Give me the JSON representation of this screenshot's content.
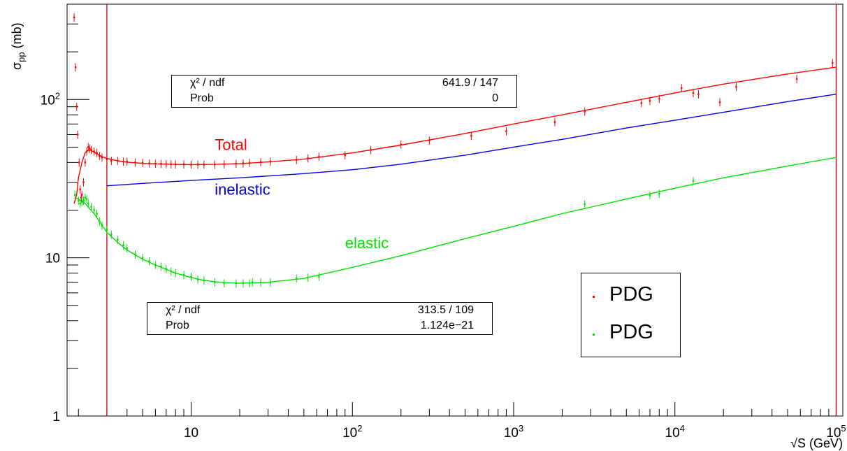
{
  "chart_data": {
    "type": "scatter",
    "title": "",
    "xlabel": "√S (GeV)",
    "ylabel": "σpp (mb)",
    "ylabel_main": "σ",
    "ylabel_sub": "pp",
    "xscale": "log",
    "yscale": "log",
    "xlim": [
      1.7,
      110000
    ],
    "ylim": [
      1,
      400
    ],
    "x_tick_labels": [
      {
        "value": 10,
        "base": "10",
        "exp": ""
      },
      {
        "value": 100,
        "base": "10",
        "exp": "2"
      },
      {
        "value": 1000,
        "base": "10",
        "exp": "3"
      },
      {
        "value": 10000,
        "base": "10",
        "exp": "4"
      },
      {
        "value": 100000,
        "base": "10",
        "exp": "5"
      }
    ],
    "y_tick_labels": [
      {
        "value": 1,
        "base": "1",
        "exp": ""
      },
      {
        "value": 10,
        "base": "10",
        "exp": ""
      },
      {
        "value": 100,
        "base": "10",
        "exp": "2"
      }
    ],
    "vertical_lines": [
      3.0,
      100000
    ],
    "vertical_line_color": "#d00000",
    "grid": false,
    "legend_position": "bottom-right",
    "series": [
      {
        "name": "PDG",
        "kind": "data",
        "color": "#ff0000",
        "x": [
          1.88,
          1.92,
          1.95,
          1.98,
          2.02,
          2.05,
          2.08,
          2.1,
          2.15,
          2.2,
          2.25,
          2.3,
          2.35,
          2.4,
          2.5,
          2.6,
          2.7,
          2.8,
          3.0,
          3.2,
          3.5,
          3.8,
          4.0,
          4.5,
          5.0,
          5.5,
          6.0,
          6.5,
          7.0,
          7.5,
          8.0,
          9.0,
          10.0,
          11.0,
          12.0,
          14.0,
          16.0,
          19.0,
          21.0,
          23.0,
          27.0,
          31.0,
          45.0,
          53.0,
          62.0,
          90.0,
          130.0,
          200.0,
          300.0,
          546.0,
          900.0,
          1800.0,
          2760.0,
          6200.0,
          7000.0,
          8000.0,
          11000.0,
          13000.0,
          14000.0,
          19000.0,
          24000.0,
          57000.0,
          95000.0
        ],
        "y": [
          330,
          160,
          90,
          60,
          40,
          27,
          24,
          25,
          30,
          40,
          47,
          50,
          49,
          48,
          47,
          46,
          44,
          43,
          42,
          41,
          41,
          40.5,
          40.5,
          40,
          39.8,
          39.5,
          39.3,
          39.2,
          39.1,
          39.0,
          38.9,
          38.9,
          38.8,
          38.8,
          38.8,
          38.9,
          39.0,
          39.3,
          39.5,
          39.8,
          40.2,
          40.5,
          41.5,
          42.5,
          43.5,
          44.5,
          48.0,
          52.0,
          55.0,
          59.0,
          63.0,
          72.0,
          84.0,
          95.0,
          98.0,
          101.0,
          118.0,
          110.0,
          108.0,
          96.0,
          120.0,
          135.0,
          170.0
        ]
      },
      {
        "name": "PDG",
        "kind": "data",
        "color": "#00e000",
        "x": [
          1.9,
          2.0,
          2.05,
          2.1,
          2.15,
          2.2,
          2.25,
          2.3,
          2.4,
          2.5,
          2.6,
          2.7,
          2.8,
          3.0,
          3.2,
          3.5,
          3.8,
          4.0,
          4.5,
          5.0,
          5.5,
          6.0,
          6.5,
          7.0,
          7.5,
          8.0,
          9.0,
          10.0,
          11.0,
          12.0,
          14.0,
          16.0,
          19.0,
          21.0,
          23.0,
          24.0,
          27.0,
          31.0,
          45.0,
          53.0,
          62.0,
          2760.0,
          7000.0,
          8000.0,
          13000.0
        ],
        "y": [
          25,
          23,
          22,
          22.5,
          23,
          24,
          23.5,
          22,
          21,
          20,
          19,
          17,
          16,
          15,
          14,
          13,
          12,
          11.5,
          10.5,
          10,
          9.5,
          9,
          8.8,
          8.5,
          8.2,
          8.0,
          7.8,
          7.6,
          7.3,
          7.2,
          7.0,
          6.9,
          6.9,
          6.9,
          6.9,
          7.0,
          7.0,
          7.0,
          7.4,
          7.5,
          7.6,
          21.8,
          24.8,
          25.4,
          30.6
        ]
      },
      {
        "name": "",
        "kind": "fit",
        "color": "#ff0000",
        "x": [
          1.88,
          1.95,
          2.0,
          2.1,
          2.2,
          2.3,
          2.4,
          2.6,
          2.8,
          3.0,
          3.5,
          4.0,
          5.0,
          6.0,
          8.0,
          10.0,
          14.0,
          20.0,
          30.0,
          50.0,
          100.0,
          200.0,
          500.0,
          1000.0,
          2000.0,
          5000.0,
          10000.0,
          20000.0,
          50000.0,
          100000.0
        ],
        "y": [
          22,
          25,
          32,
          40,
          46,
          48,
          47.5,
          45.5,
          43.5,
          42.5,
          41,
          40.2,
          39.5,
          39.2,
          38.9,
          38.8,
          38.9,
          39.3,
          40.3,
          42,
          46,
          51.5,
          61,
          70,
          80,
          96,
          110,
          125,
          145,
          160
        ]
      },
      {
        "name": "",
        "kind": "fit",
        "color": "#0000e0",
        "x": [
          3.0,
          5.0,
          10.0,
          20.0,
          50.0,
          100.0,
          200.0,
          500.0,
          1000.0,
          2000.0,
          5000.0,
          10000.0,
          20000.0,
          50000.0,
          100000.0
        ],
        "y": [
          28.5,
          29.5,
          30.8,
          32,
          34,
          36,
          39,
          44.5,
          50,
          56,
          66,
          74,
          83,
          97,
          108
        ]
      },
      {
        "name": "",
        "kind": "fit",
        "color": "#00e000",
        "x": [
          1.9,
          2.0,
          2.2,
          2.5,
          3.0,
          3.5,
          4.0,
          5.0,
          6.0,
          8.0,
          10.0,
          12.0,
          15.0,
          20.0,
          30.0,
          50.0,
          100.0,
          200.0,
          500.0,
          1000.0,
          2000.0,
          5000.0,
          10000.0,
          20000.0,
          50000.0,
          100000.0
        ],
        "y": [
          24,
          23.5,
          22,
          19,
          14.5,
          12.5,
          11.2,
          9.8,
          9.0,
          8.0,
          7.5,
          7.2,
          7.0,
          6.9,
          7.0,
          7.4,
          8.7,
          10.3,
          13.2,
          15.8,
          19,
          23.5,
          27.5,
          32,
          38,
          43
        ]
      }
    ],
    "annotations": [
      {
        "text": "Total",
        "x": 14,
        "y": 48,
        "color": "#ff0000"
      },
      {
        "text": "inelastic",
        "x": 14,
        "y": 25,
        "color": "#0000cc"
      },
      {
        "text": "elastic",
        "x": 90,
        "y": 11.5,
        "color": "#00e000"
      }
    ],
    "fit_stats": [
      {
        "id": "total",
        "rows": [
          {
            "name": "χ² / ndf",
            "value": "641.9 / 147"
          },
          {
            "name": "Prob",
            "value": "0"
          }
        ]
      },
      {
        "id": "elastic",
        "rows": [
          {
            "name": "χ² / ndf",
            "value": "313.5 / 109"
          },
          {
            "name": "Prob",
            "value": "1.124e−21"
          }
        ]
      }
    ],
    "legend": [
      {
        "label": "PDG",
        "color": "#ff0000"
      },
      {
        "label": "PDG",
        "color": "#00e000"
      }
    ]
  }
}
